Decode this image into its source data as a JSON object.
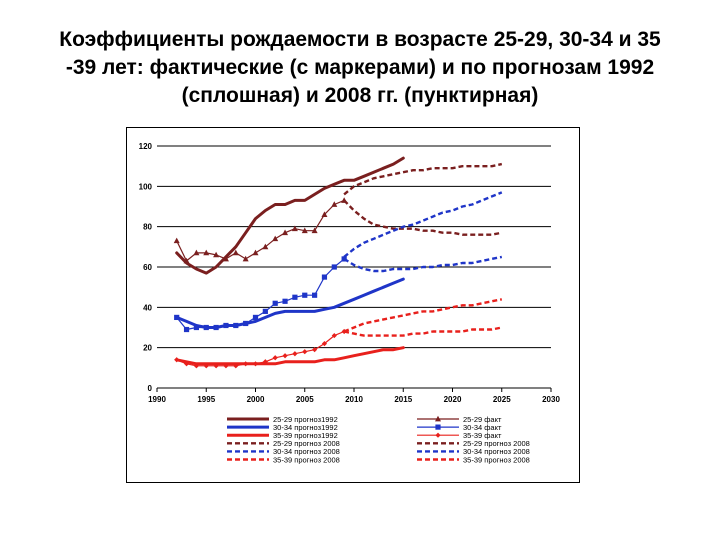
{
  "title": "Коэффициенты рождаемости в возрасте 25-29, 30-34 и 35\n-39 лет: фактические (с маркерами) и по прогнозам 1992\n(сплошная) и 2008 гг. (пунктирная)",
  "colors": {
    "dark_red": "#7a1f1f",
    "blue": "#1f35c8",
    "red": "#e8201c"
  },
  "chart_data": {
    "type": "line",
    "title": "Коэффициенты рождаемости в возрасте 25-29, 30-34 и 35-39 лет: фактические (с маркерами) и по прогнозам 1992 (сплошная) и 2008 гг. (пунктирная)",
    "xlim": [
      1990,
      2030
    ],
    "ylim": [
      0,
      120
    ],
    "x_ticks": [
      1990,
      1995,
      2000,
      2005,
      2010,
      2015,
      2020,
      2025,
      2030
    ],
    "y_ticks": [
      0,
      20,
      40,
      60,
      80,
      100,
      120
    ],
    "grid": "horizontal",
    "legend_position": "bottom",
    "series": [
      {
        "name": "25-29 прогноз 1992",
        "color": "#7a1f1f",
        "style": "solid",
        "marker": "none",
        "x": [
          1992,
          1993,
          1994,
          1995,
          1996,
          1997,
          1998,
          1999,
          2000,
          2001,
          2002,
          2003,
          2004,
          2005,
          2006,
          2007,
          2008,
          2009,
          2010,
          2011,
          2012,
          2013,
          2014,
          2015
        ],
        "y": [
          67,
          62,
          59,
          57,
          60,
          65,
          70,
          77,
          84,
          88,
          91,
          91,
          93,
          93,
          96,
          99,
          101,
          103,
          103,
          105,
          107,
          109,
          111,
          114
        ]
      },
      {
        "name": "25-29 факт",
        "color": "#7a1f1f",
        "style": "solid",
        "marker": "triangle",
        "x": [
          1992,
          1993,
          1994,
          1995,
          1996,
          1997,
          1998,
          1999,
          2000,
          2001,
          2002,
          2003,
          2004,
          2005,
          2006,
          2007,
          2008,
          2009
        ],
        "y": [
          73,
          63,
          67,
          67,
          66,
          64,
          67,
          64,
          67,
          70,
          74,
          77,
          79,
          78,
          78,
          86,
          91,
          93
        ]
      },
      {
        "name": "30-34 прогноз1992",
        "color": "#1f35c8",
        "style": "solid",
        "marker": "none",
        "x": [
          1992,
          1993,
          1994,
          1995,
          1996,
          1997,
          1998,
          1999,
          2000,
          2001,
          2002,
          2003,
          2004,
          2005,
          2006,
          2007,
          2008,
          2009,
          2010,
          2011,
          2012,
          2013,
          2014,
          2015
        ],
        "y": [
          35,
          33,
          31,
          30,
          30,
          31,
          31,
          32,
          33,
          35,
          37,
          38,
          38,
          38,
          38,
          39,
          40,
          42,
          44,
          46,
          48,
          50,
          52,
          54
        ]
      },
      {
        "name": "30-34 факт",
        "color": "#1f35c8",
        "style": "solid",
        "marker": "square",
        "x": [
          1992,
          1993,
          1994,
          1995,
          1996,
          1997,
          1998,
          1999,
          2000,
          2001,
          2002,
          2003,
          2004,
          2005,
          2006,
          2007,
          2008,
          2009
        ],
        "y": [
          35,
          29,
          30,
          30,
          30,
          31,
          31,
          32,
          35,
          38,
          42,
          43,
          45,
          46,
          46,
          55,
          60,
          64
        ]
      },
      {
        "name": "35-39 прогноз1992",
        "color": "#e8201c",
        "style": "solid",
        "marker": "none",
        "x": [
          1992,
          1993,
          1994,
          1995,
          1996,
          1997,
          1998,
          1999,
          2000,
          2001,
          2002,
          2003,
          2004,
          2005,
          2006,
          2007,
          2008,
          2009,
          2010,
          2011,
          2012,
          2013,
          2014,
          2015
        ],
        "y": [
          14,
          13,
          12,
          12,
          12,
          12,
          12,
          12,
          12,
          12,
          12,
          13,
          13,
          13,
          13,
          14,
          14,
          15,
          16,
          17,
          18,
          19,
          19,
          20
        ]
      },
      {
        "name": "35-39 факт",
        "color": "#e8201c",
        "style": "solid",
        "marker": "diamond",
        "x": [
          1992,
          1993,
          1994,
          1995,
          1996,
          1997,
          1998,
          1999,
          2000,
          2001,
          2002,
          2003,
          2004,
          2005,
          2006,
          2007,
          2008,
          2009
        ],
        "y": [
          14,
          12,
          11,
          11,
          11,
          11,
          11,
          12,
          12,
          13,
          15,
          16,
          17,
          18,
          19,
          22,
          26,
          28
        ]
      },
      {
        "name": "25-29 прогноз 2008",
        "color": "#7a1f1f",
        "style": "dashed",
        "marker": "none",
        "x": [
          2009,
          2010,
          2011,
          2012,
          2013,
          2014,
          2015,
          2016,
          2017,
          2018,
          2019,
          2020,
          2021,
          2022,
          2023,
          2024,
          2025
        ],
        "y": [
          93,
          88,
          84,
          81,
          80,
          79,
          79,
          79,
          78,
          78,
          77,
          77,
          76,
          76,
          76,
          76,
          77
        ]
      },
      {
        "name": "30-34 прогноз 2008",
        "color": "#1f35c8",
        "style": "dashed",
        "marker": "none",
        "x": [
          2009,
          2010,
          2011,
          2012,
          2013,
          2014,
          2015,
          2016,
          2017,
          2018,
          2019,
          2020,
          2021,
          2022,
          2023,
          2024,
          2025
        ],
        "y": [
          64,
          61,
          59,
          58,
          58,
          59,
          59,
          59,
          60,
          60,
          61,
          61,
          62,
          62,
          63,
          64,
          65
        ]
      },
      {
        "name": "35-39 прогноз 2008",
        "color": "#e8201c",
        "style": "dashed",
        "marker": "none",
        "x": [
          2009,
          2010,
          2011,
          2012,
          2013,
          2014,
          2015,
          2016,
          2017,
          2018,
          2019,
          2020,
          2021,
          2022,
          2023,
          2024,
          2025
        ],
        "y": [
          28,
          27,
          26,
          26,
          26,
          26,
          26,
          27,
          27,
          28,
          28,
          28,
          28,
          29,
          29,
          29,
          30
        ]
      },
      {
        "name": "25-29 прогноз 2008",
        "color": "#7a1f1f",
        "style": "dashed",
        "marker": "none",
        "x": [
          2009,
          2010,
          2011,
          2012,
          2013,
          2014,
          2015,
          2016,
          2017,
          2018,
          2019,
          2020,
          2021,
          2022,
          2023,
          2024,
          2025
        ],
        "y": [
          96,
          100,
          102,
          104,
          105,
          106,
          107,
          108,
          108,
          109,
          109,
          109,
          110,
          110,
          110,
          110,
          111
        ]
      },
      {
        "name": "30-34 прогноз 2008",
        "color": "#1f35c8",
        "style": "dashed",
        "marker": "none",
        "x": [
          2009,
          2010,
          2011,
          2012,
          2013,
          2014,
          2015,
          2016,
          2017,
          2018,
          2019,
          2020,
          2021,
          2022,
          2023,
          2024,
          2025
        ],
        "y": [
          65,
          69,
          72,
          74,
          76,
          78,
          80,
          81,
          83,
          85,
          87,
          88,
          90,
          91,
          93,
          95,
          97
        ]
      },
      {
        "name": "35-39 прогноз 2008",
        "color": "#e8201c",
        "style": "dashed",
        "marker": "none",
        "x": [
          2009,
          2010,
          2011,
          2012,
          2013,
          2014,
          2015,
          2016,
          2017,
          2018,
          2019,
          2020,
          2021,
          2022,
          2023,
          2024,
          2025
        ],
        "y": [
          28,
          30,
          32,
          33,
          34,
          35,
          36,
          37,
          38,
          38,
          39,
          40,
          41,
          41,
          42,
          43,
          44
        ]
      }
    ],
    "legend": [
      {
        "label": "25-29 прогноз1992",
        "series": 0
      },
      {
        "label": "25-29 факт",
        "series": 1
      },
      {
        "label": "30-34 прогноз1992",
        "series": 2
      },
      {
        "label": "30-34 факт",
        "series": 3
      },
      {
        "label": "35-39 прогноз1992",
        "series": 4
      },
      {
        "label": "35-39 факт",
        "series": 5
      },
      {
        "label": "25-29 прогноз 2008",
        "series": 6
      },
      {
        "label": "25-29 прогноз 2008",
        "series": 9
      },
      {
        "label": "30-34 прогноз 2008",
        "series": 7
      },
      {
        "label": "30-34 прогноз 2008",
        "series": 10
      },
      {
        "label": "35-39 прогноз 2008",
        "series": 8
      },
      {
        "label": "35-39 прогноз 2008",
        "series": 11
      }
    ]
  }
}
